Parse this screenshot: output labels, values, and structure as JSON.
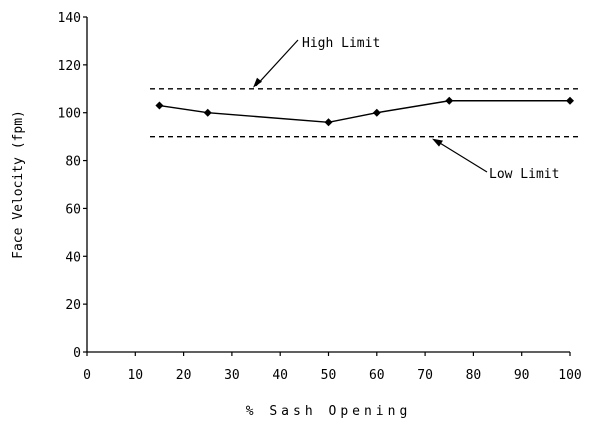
{
  "chart_data": {
    "type": "line",
    "title": "",
    "xlabel": "% Sash Opening",
    "ylabel": "Face Velocity (fpm)",
    "xlim": [
      0,
      100
    ],
    "ylim": [
      0,
      140
    ],
    "x_ticks": [
      "0",
      "10",
      "20",
      "30",
      "40",
      "50",
      "60",
      "70",
      "80",
      "90",
      "100"
    ],
    "y_ticks": [
      "0",
      "20",
      "40",
      "60",
      "80",
      "100",
      "120",
      "140"
    ],
    "grid": false,
    "legend": "none",
    "series": [
      {
        "x": [
          15,
          25,
          50,
          60,
          75,
          100
        ],
        "y": [
          103,
          100,
          96,
          100,
          105,
          105
        ],
        "color": "#000000",
        "marker": "diamond"
      }
    ],
    "reference_lines": [
      {
        "label": "High Limit",
        "y": 110,
        "style": "dashed"
      },
      {
        "label": "Low Limit",
        "y": 90,
        "style": "dashed"
      }
    ]
  }
}
